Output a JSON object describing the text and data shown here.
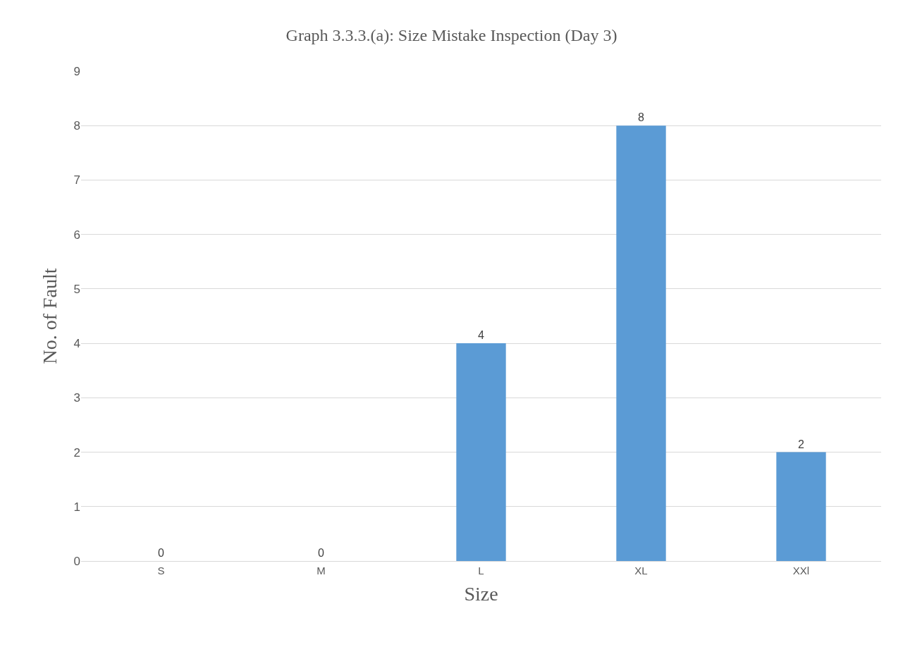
{
  "chart_data": {
    "type": "bar",
    "title": "Graph 3.3.3.(a): Size Mistake Inspection (Day 3)",
    "xlabel": "Size",
    "ylabel": "No. of Fault",
    "categories": [
      "S",
      "M",
      "L",
      "XL",
      "XXl"
    ],
    "values": [
      0,
      0,
      4,
      8,
      2
    ],
    "color": "#5b9bd5",
    "ylim": [
      0,
      9
    ],
    "yticks": [
      0,
      1,
      2,
      3,
      4,
      5,
      6,
      7,
      8,
      9
    ],
    "grid": "y",
    "data_labels": true
  }
}
